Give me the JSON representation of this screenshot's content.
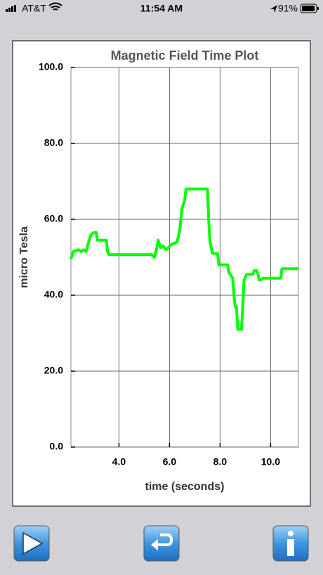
{
  "status_bar": {
    "carrier": "AT&T",
    "time": "11:54 AM",
    "battery": "91%"
  },
  "chart_data": {
    "type": "line",
    "title": "Magnetic Field Time Plot",
    "x_label": "time (seconds)",
    "y_label": "micro Tesla",
    "x": [
      2.1,
      2.2,
      2.4,
      2.5,
      2.6,
      2.7,
      2.8,
      2.9,
      3.0,
      3.1,
      3.15,
      3.5,
      3.55,
      3.6,
      5.3,
      5.4,
      5.5,
      5.55,
      5.65,
      5.75,
      5.85,
      5.95,
      6.1,
      6.3,
      6.4,
      6.5,
      6.6,
      6.65,
      7.5,
      7.55,
      7.6,
      7.7,
      7.9,
      7.95,
      8.3,
      8.35,
      8.45,
      8.5,
      8.55,
      8.6,
      8.65,
      8.7,
      8.85,
      8.95,
      9.05,
      9.3,
      9.35,
      9.45,
      9.5,
      9.55,
      9.6,
      9.7,
      10.4,
      10.45,
      11.1
    ],
    "series": [
      {
        "color": "#00ff00",
        "values": [
          49.5,
          51.5,
          52,
          51.5,
          52,
          51.5,
          54,
          56,
          56.5,
          56.5,
          54.5,
          54.5,
          51.5,
          50.7,
          50.7,
          50,
          52.5,
          54.5,
          52.5,
          53,
          52,
          52.5,
          53.5,
          54,
          57,
          63,
          65,
          68,
          68,
          60,
          54,
          51,
          51,
          48,
          48,
          46,
          45,
          44.5,
          40,
          37,
          37,
          31,
          31,
          44,
          45.5,
          45.5,
          46.5,
          46.5,
          45.5,
          44,
          44,
          44.5,
          44.5,
          47,
          47
        ]
      }
    ],
    "xlim": [
      2.1,
      11.1
    ],
    "ylim": [
      0,
      100
    ],
    "xticks": [
      {
        "value": 4,
        "label": "4.0"
      },
      {
        "value": 6,
        "label": "6.0"
      },
      {
        "value": 8,
        "label": "8.0"
      },
      {
        "value": 10,
        "label": "10.0"
      }
    ],
    "yticks": [
      {
        "value": 0,
        "label": "0.0"
      },
      {
        "value": 20,
        "label": "20.0"
      },
      {
        "value": 40,
        "label": "40.0"
      },
      {
        "value": 60,
        "label": "60.0"
      },
      {
        "value": 80,
        "label": "80.0"
      },
      {
        "value": 100,
        "label": "100.0"
      }
    ],
    "grid": true
  }
}
